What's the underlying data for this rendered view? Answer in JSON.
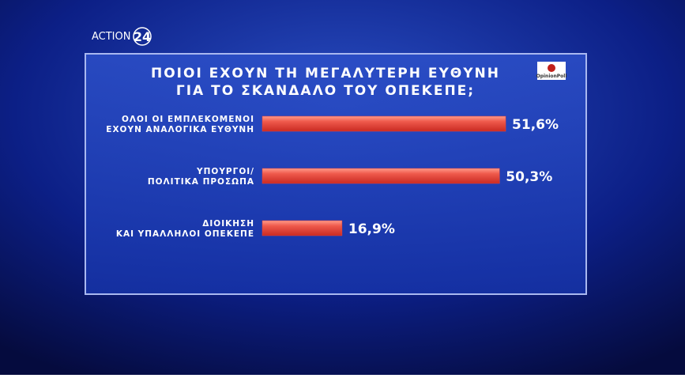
{
  "channel": {
    "name": "ACTION",
    "number": "24"
  },
  "source": "OpinionPoll",
  "chart_data": {
    "type": "hbar",
    "title": "ΠΟΙΟΙ ΕΧΟΥΝ ΤΗ ΜΕΓΑΛΥΤΕΡΗ ΕΥΘΥΝΗ\nΓΙΑ ΤΟ ΣΚΑΝΔΑΛΟ ΤΟΥ ΟΠΕΚΕΠΕ;",
    "categories": [
      "ΟΛΟΙ ΟΙ ΕΜΠΛΕΚΟΜΕΝΟΙ\nΕΧΟΥΝ ΑΝΑΛΟΓΙΚΑ ΕΥΘΥΝΗ",
      "ΥΠΟΥΡΓΟΙ/\nΠΟΛΙΤΙΚΑ ΠΡΟΣΩΠΑ",
      "ΔΙΟΙΚΗΣΗ\nΚΑΙ ΥΠΑΛΛΗΛΟΙ ΟΠΕΚΕΠΕ"
    ],
    "values": [
      51.6,
      50.3,
      16.9
    ],
    "value_labels": [
      "51,6%",
      "50,3%",
      "16,9%"
    ],
    "color": "#e8453c"
  }
}
